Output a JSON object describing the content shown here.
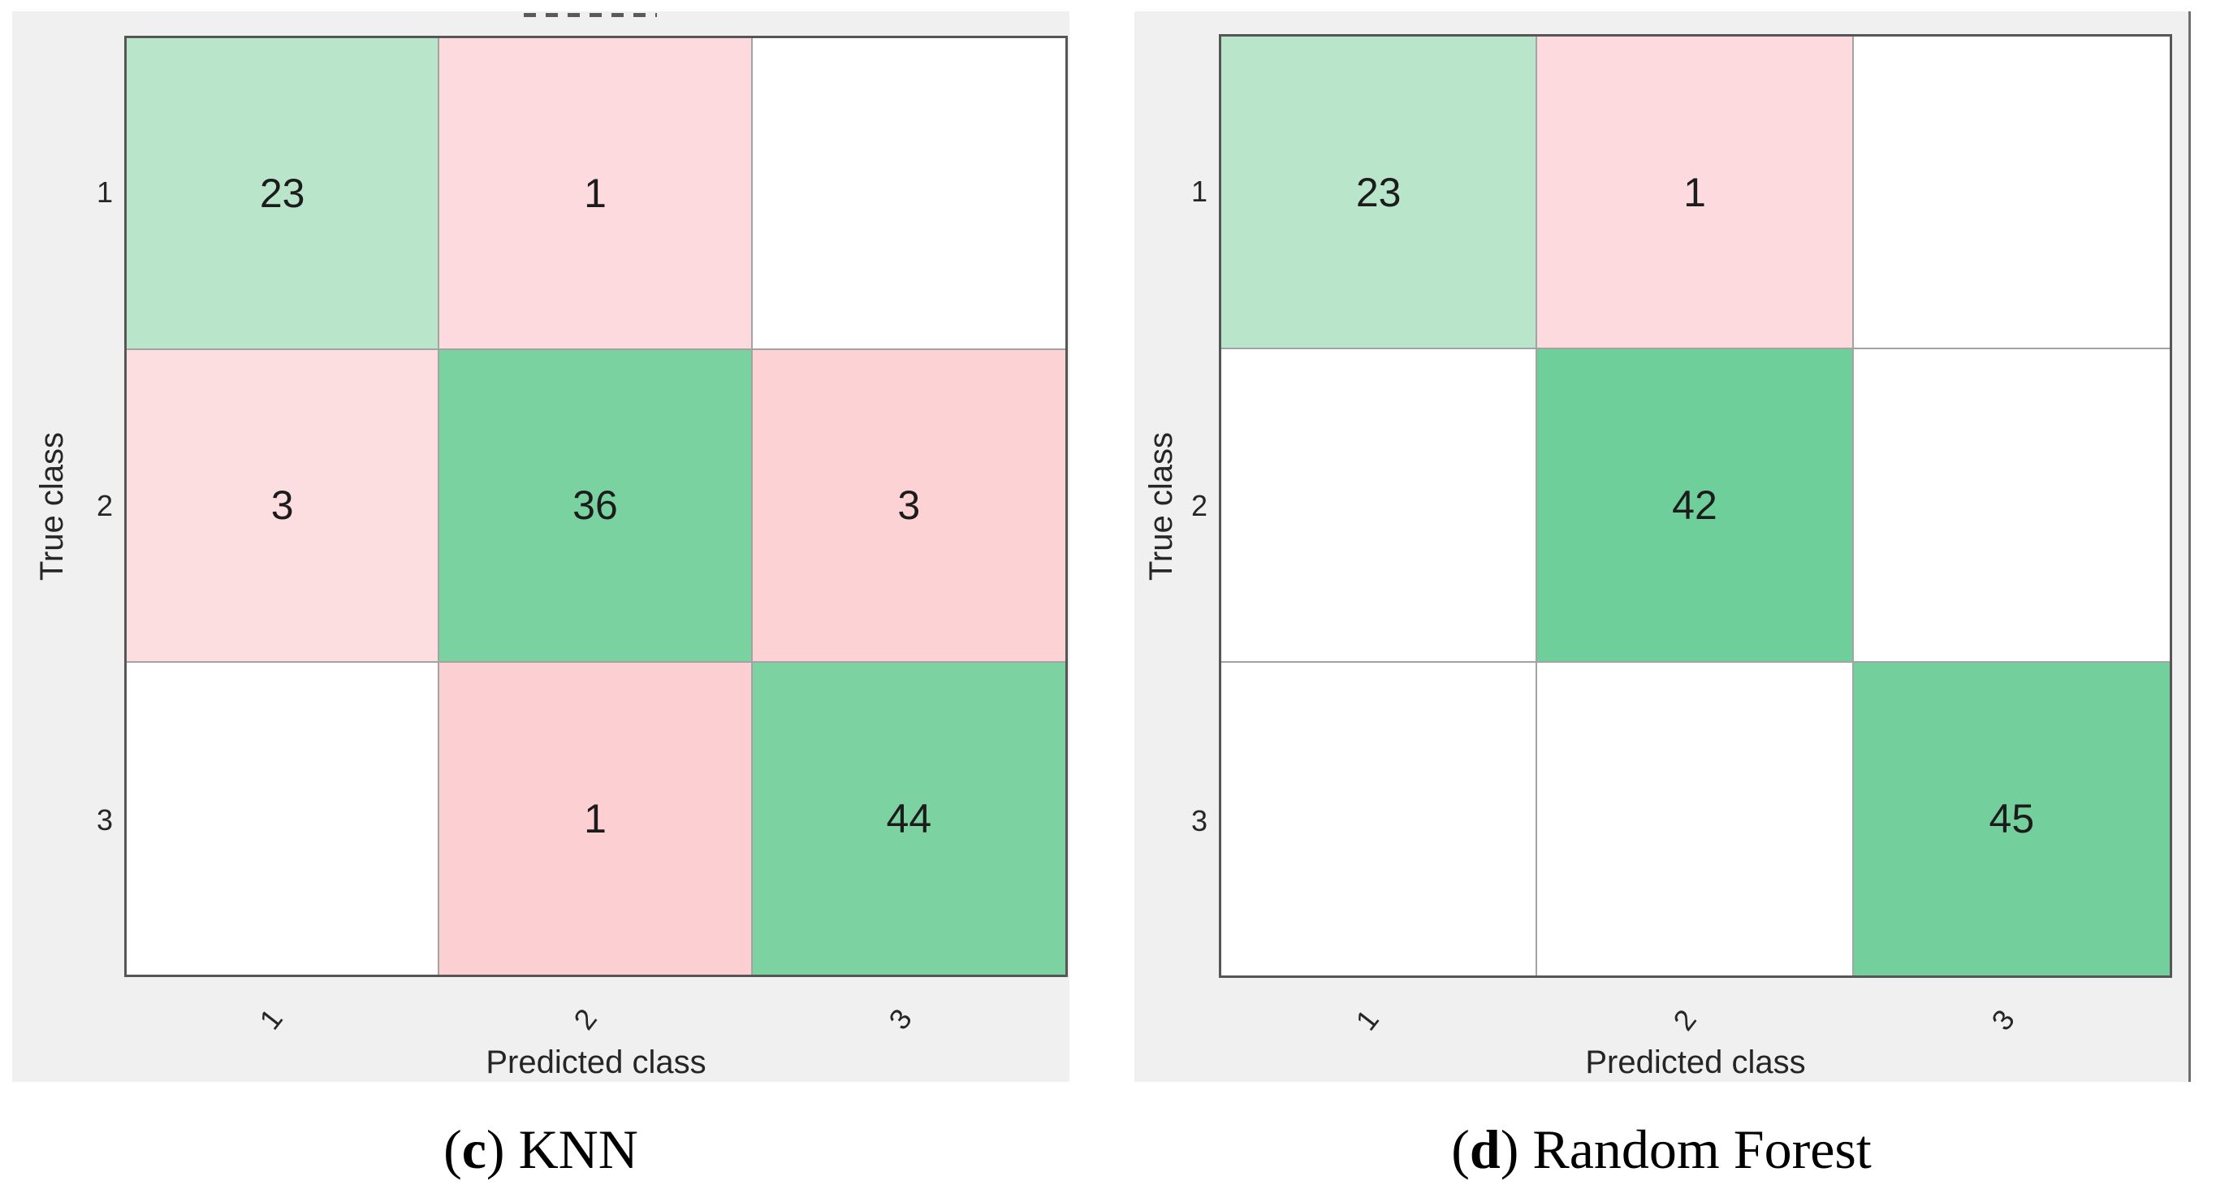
{
  "figure": {
    "panel_background": "#f0f0f0",
    "grid_line_color": "#a3a3a3",
    "outer_border_color": "#565656",
    "panels": [
      {
        "caption_prefix": "(",
        "caption_letter": "c",
        "caption_suffix": ") ",
        "caption_title": "KNN",
        "xlabel": "Predicted class",
        "ylabel": "True class",
        "xticks": [
          "1",
          "2",
          "3"
        ],
        "yticks": [
          "1",
          "2",
          "3"
        ],
        "cells": [
          [
            {
              "v": "23",
              "bg": "#b9e6cb"
            },
            {
              "v": "1",
              "bg": "#fcdadd"
            },
            {
              "v": "",
              "bg": "#ffffff"
            }
          ],
          [
            {
              "v": "3",
              "bg": "#fcdee0"
            },
            {
              "v": "36",
              "bg": "#7bd2a1"
            },
            {
              "v": "3",
              "bg": "#fcd2d5"
            }
          ],
          [
            {
              "v": "",
              "bg": "#ffffff"
            },
            {
              "v": "1",
              "bg": "#fccfd3"
            },
            {
              "v": "44",
              "bg": "#7dd2a2"
            }
          ]
        ]
      },
      {
        "caption_prefix": "(",
        "caption_letter": "d",
        "caption_suffix": ") ",
        "caption_title": "Random Forest",
        "xlabel": "Predicted class",
        "ylabel": "True class",
        "xticks": [
          "1",
          "2",
          "3"
        ],
        "yticks": [
          "1",
          "2",
          "3"
        ],
        "cells": [
          [
            {
              "v": "23",
              "bg": "#b9e6cb"
            },
            {
              "v": "1",
              "bg": "#fcdadd"
            },
            {
              "v": "",
              "bg": "#ffffff"
            }
          ],
          [
            {
              "v": "",
              "bg": "#ffffff"
            },
            {
              "v": "42",
              "bg": "#6fcf9b"
            },
            {
              "v": "",
              "bg": "#ffffff"
            }
          ],
          [
            {
              "v": "",
              "bg": "#ffffff"
            },
            {
              "v": "",
              "bg": "#ffffff"
            },
            {
              "v": "45",
              "bg": "#73d09d"
            }
          ]
        ]
      }
    ]
  },
  "chart_data": [
    {
      "type": "heatmap",
      "title": "(c) KNN",
      "xlabel": "Predicted class",
      "ylabel": "True class",
      "x_categories": [
        "1",
        "2",
        "3"
      ],
      "y_categories": [
        "1",
        "2",
        "3"
      ],
      "values": [
        [
          23,
          1,
          null
        ],
        [
          3,
          36,
          3
        ],
        [
          null,
          1,
          44
        ]
      ],
      "diagonal_color": "#7bd2a1",
      "off_diagonal_color": "#fcd2d5",
      "empty_cell_color": "#ffffff",
      "grid": true,
      "legend": false
    },
    {
      "type": "heatmap",
      "title": "(d) Random Forest",
      "xlabel": "Predicted class",
      "ylabel": "True class",
      "x_categories": [
        "1",
        "2",
        "3"
      ],
      "y_categories": [
        "1",
        "2",
        "3"
      ],
      "values": [
        [
          23,
          1,
          null
        ],
        [
          null,
          42,
          null
        ],
        [
          null,
          null,
          45
        ]
      ],
      "diagonal_color": "#6fcf9b",
      "off_diagonal_color": "#fcdadd",
      "empty_cell_color": "#ffffff",
      "grid": true,
      "legend": false
    }
  ]
}
